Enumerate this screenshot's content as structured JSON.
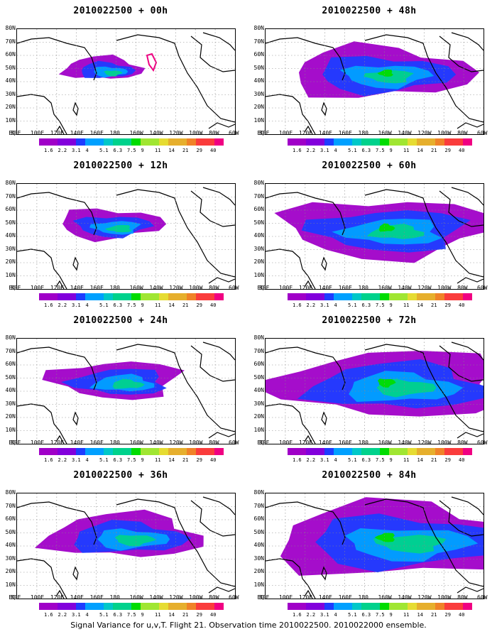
{
  "panels": [
    {
      "title": "2010022500 + 00h",
      "col": 0,
      "row": 0,
      "spread": 0
    },
    {
      "title": "2010022500 + 48h",
      "col": 1,
      "row": 0,
      "spread": 4
    },
    {
      "title": "2010022500 + 12h",
      "col": 0,
      "row": 1,
      "spread": 1
    },
    {
      "title": "2010022500 + 60h",
      "col": 1,
      "row": 1,
      "spread": 5
    },
    {
      "title": "2010022500 + 24h",
      "col": 0,
      "row": 2,
      "spread": 2
    },
    {
      "title": "2010022500 + 72h",
      "col": 1,
      "row": 2,
      "spread": 6
    },
    {
      "title": "2010022500 + 36h",
      "col": 0,
      "row": 3,
      "spread": 3
    },
    {
      "title": "2010022500 + 84h",
      "col": 1,
      "row": 3,
      "spread": 7
    }
  ],
  "lat_labels": [
    "80N",
    "70N",
    "60N",
    "50N",
    "40N",
    "30N",
    "20N",
    "10N",
    "EQ"
  ],
  "lon_labels": [
    "80E",
    "100E",
    "120E",
    "140E",
    "160E",
    "180",
    "160W",
    "140W",
    "120W",
    "100W",
    "80W",
    "60W"
  ],
  "colorbar": {
    "labels": [
      "1.6",
      "2.2",
      "3.1",
      "4",
      "5.1",
      "6.3",
      "7.5",
      "9",
      "11",
      "14",
      "21",
      "29",
      "40"
    ],
    "colors": [
      "#a000c8",
      "#8200dc",
      "#1e3cff",
      "#00a0ff",
      "#00c8c8",
      "#00d28c",
      "#00dc00",
      "#a0e632",
      "#e6dc32",
      "#e6af2d",
      "#f08228",
      "#fa3c3c",
      "#f00082"
    ]
  },
  "footer": "Signal Variance for u,v,T. Flight 21. Observation time 2010022500. 2010022000 ensemble."
}
